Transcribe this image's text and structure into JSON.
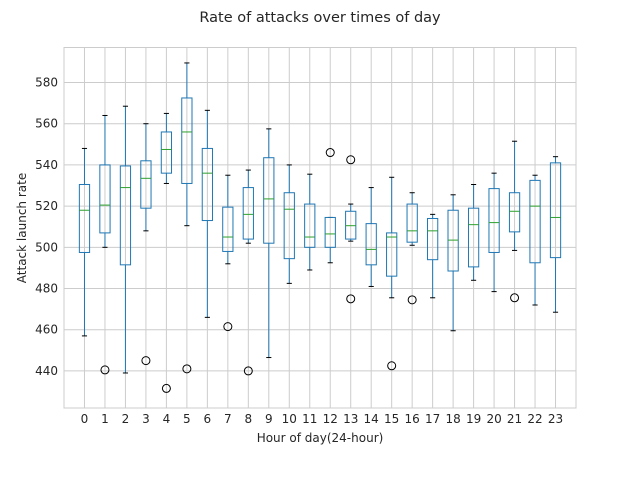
{
  "chart_data": {
    "type": "boxplot",
    "title": "Rate of attacks over times of day",
    "xlabel": "Hour of day(24-hour)",
    "ylabel": "Attack launch rate",
    "ylim": [
      422,
      597
    ],
    "yticks": [
      440,
      460,
      480,
      500,
      520,
      540,
      560,
      580
    ],
    "grid": true,
    "categories": [
      "0",
      "1",
      "2",
      "3",
      "4",
      "5",
      "6",
      "7",
      "8",
      "9",
      "10",
      "11",
      "12",
      "13",
      "14",
      "15",
      "16",
      "17",
      "18",
      "19",
      "20",
      "21",
      "22",
      "23"
    ],
    "boxes": [
      {
        "whislo": 457,
        "q1": 497.5,
        "med": 518,
        "q3": 530.5,
        "whishi": 548,
        "fliers": []
      },
      {
        "whislo": 500,
        "q1": 507,
        "med": 520.5,
        "q3": 540,
        "whishi": 564,
        "fliers": [
          440.5
        ]
      },
      {
        "whislo": 439,
        "q1": 491.5,
        "med": 529,
        "q3": 539.5,
        "whishi": 568.5,
        "fliers": []
      },
      {
        "whislo": 508,
        "q1": 519,
        "med": 533.5,
        "q3": 542,
        "whishi": 560,
        "fliers": [
          445
        ]
      },
      {
        "whislo": 531,
        "q1": 536,
        "med": 547.5,
        "q3": 556,
        "whishi": 565,
        "fliers": [
          431.5
        ]
      },
      {
        "whislo": 510.5,
        "q1": 531,
        "med": 556,
        "q3": 572.5,
        "whishi": 589.5,
        "fliers": [
          441
        ]
      },
      {
        "whislo": 466,
        "q1": 513,
        "med": 536,
        "q3": 548,
        "whishi": 566.5,
        "fliers": []
      },
      {
        "whislo": 492,
        "q1": 498,
        "med": 505,
        "q3": 519.5,
        "whishi": 535,
        "fliers": [
          461.5
        ]
      },
      {
        "whislo": 502,
        "q1": 504,
        "med": 516,
        "q3": 529,
        "whishi": 537.5,
        "fliers": [
          440
        ]
      },
      {
        "whislo": 446.5,
        "q1": 502,
        "med": 523.5,
        "q3": 543.5,
        "whishi": 557.5,
        "fliers": []
      },
      {
        "whislo": 482.5,
        "q1": 494.5,
        "med": 518.5,
        "q3": 526.5,
        "whishi": 540,
        "fliers": []
      },
      {
        "whislo": 489,
        "q1": 500,
        "med": 505,
        "q3": 521,
        "whishi": 535.5,
        "fliers": []
      },
      {
        "whislo": 492.5,
        "q1": 500,
        "med": 506.5,
        "q3": 514.5,
        "whishi": 514.5,
        "fliers": [
          546
        ]
      },
      {
        "whislo": 503,
        "q1": 504,
        "med": 510.5,
        "q3": 517.5,
        "whishi": 521,
        "fliers": [
          542.5,
          475
        ]
      },
      {
        "whislo": 481,
        "q1": 491.5,
        "med": 499,
        "q3": 511.5,
        "whishi": 529,
        "fliers": []
      },
      {
        "whislo": 475.5,
        "q1": 486,
        "med": 505,
        "q3": 507,
        "whishi": 534,
        "fliers": [
          442.5
        ]
      },
      {
        "whislo": 501,
        "q1": 502.5,
        "med": 508,
        "q3": 521,
        "whishi": 526.5,
        "fliers": [
          474.5
        ]
      },
      {
        "whislo": 475.5,
        "q1": 494,
        "med": 508,
        "q3": 514,
        "whishi": 516,
        "fliers": []
      },
      {
        "whislo": 459.5,
        "q1": 488.5,
        "med": 503.5,
        "q3": 518,
        "whishi": 525.5,
        "fliers": []
      },
      {
        "whislo": 484,
        "q1": 490.5,
        "med": 511,
        "q3": 519,
        "whishi": 530.5,
        "fliers": []
      },
      {
        "whislo": 478.5,
        "q1": 497.5,
        "med": 512,
        "q3": 528.5,
        "whishi": 536,
        "fliers": []
      },
      {
        "whislo": 498.5,
        "q1": 507.5,
        "med": 517.5,
        "q3": 526.5,
        "whishi": 551.5,
        "fliers": [
          475.5
        ]
      },
      {
        "whislo": 472,
        "q1": 492.5,
        "med": 520,
        "q3": 532.5,
        "whishi": 535,
        "fliers": []
      },
      {
        "whislo": 468.5,
        "q1": 495,
        "med": 514.5,
        "q3": 541,
        "whishi": 544,
        "fliers": []
      }
    ],
    "colors": {
      "box": "#1f77b4",
      "median": "#2ca02c",
      "cap": "#000000",
      "flier": "#000000",
      "grid": "#cccccc"
    }
  }
}
